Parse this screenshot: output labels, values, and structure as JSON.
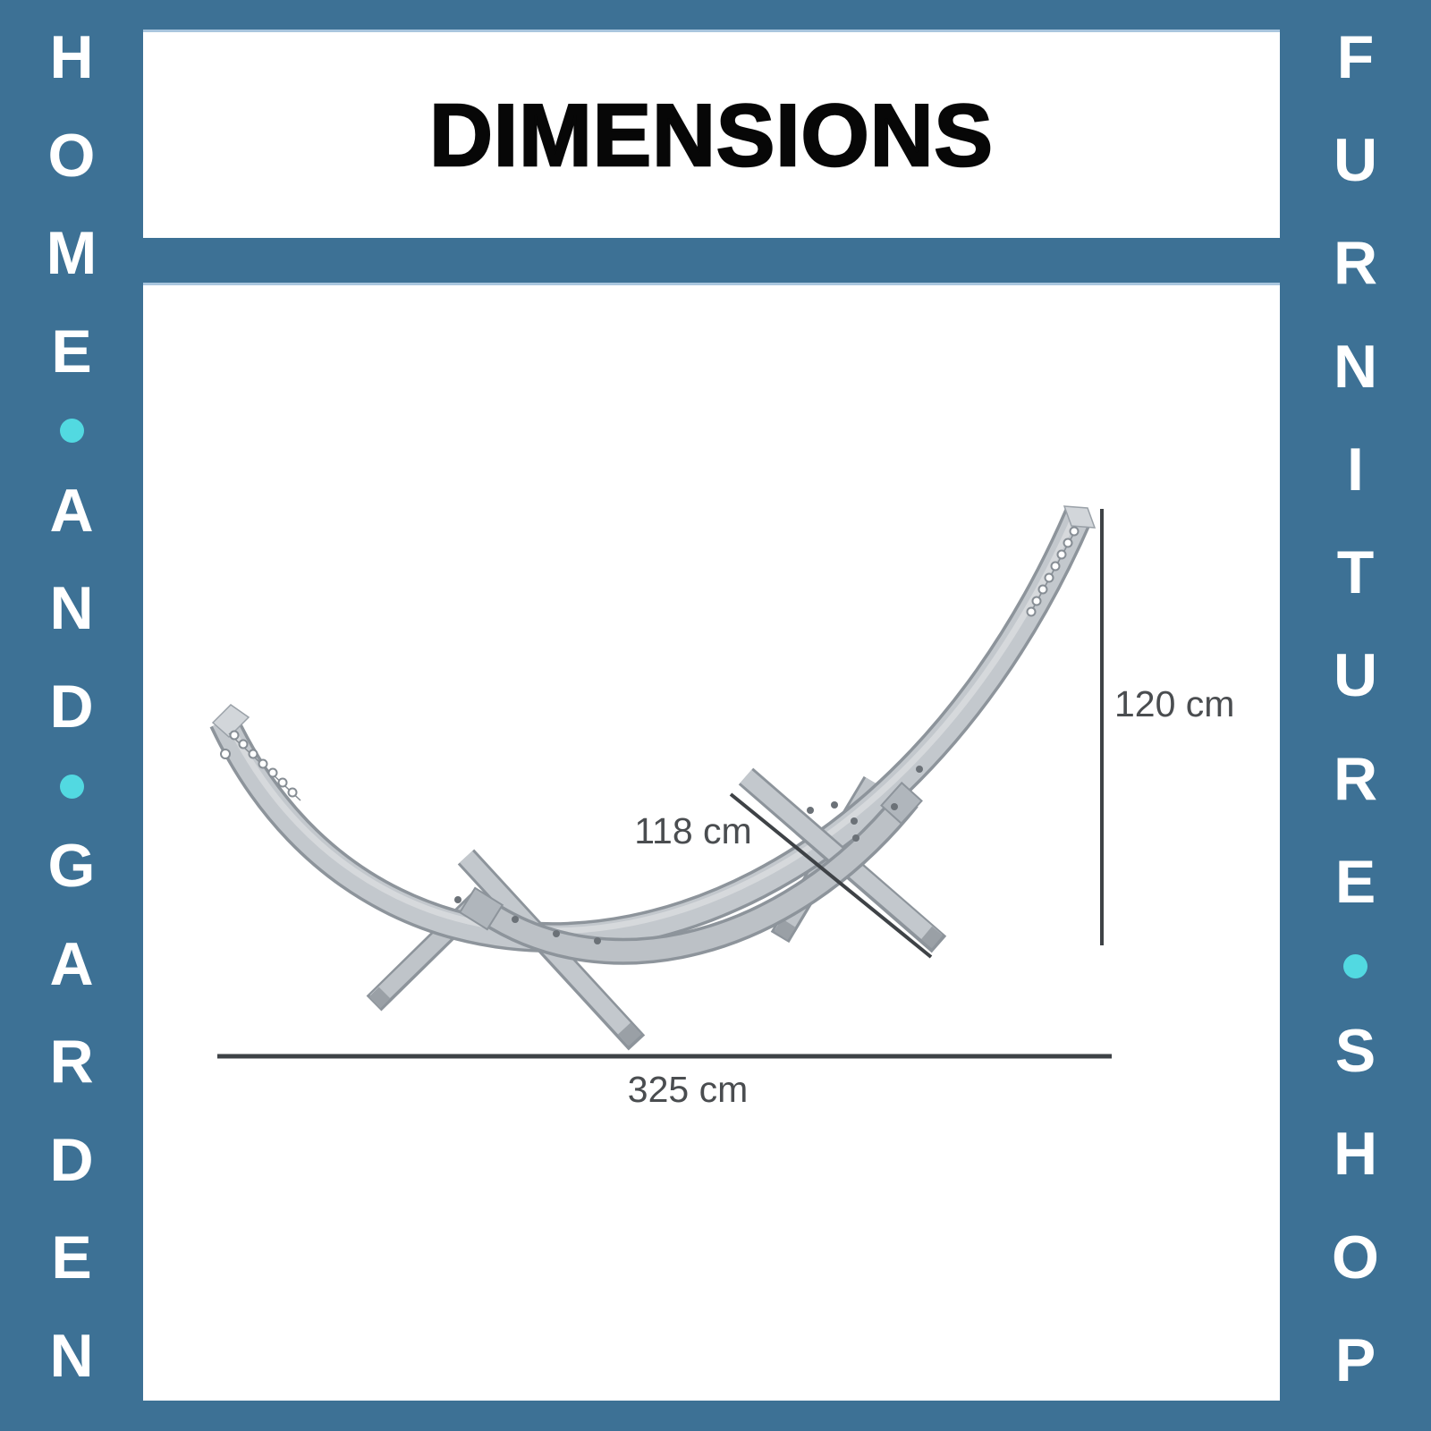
{
  "title": "DIMENSIONS",
  "banners": {
    "left": [
      "H",
      "O",
      "M",
      "E",
      "•",
      "A",
      "N",
      "D",
      "•",
      "G",
      "A",
      "R",
      "D",
      "E",
      "N"
    ],
    "right": [
      "F",
      "U",
      "R",
      "N",
      "I",
      "T",
      "U",
      "R",
      "E",
      "•",
      "S",
      "H",
      "O",
      "P"
    ]
  },
  "dimensions": {
    "height": "120 cm",
    "spread": "118 cm",
    "length": "325 cm"
  },
  "illustration": "curved-wooden-hammock-stand",
  "colors": {
    "frame_blue": "#3D7195",
    "accent_teal": "#52D9E1",
    "panel_edge_light_blue": "#A9C6DE",
    "title_black": "#070707",
    "dimension_text_gray": "#4A4D50",
    "dimension_line_gray": "#3E4246",
    "product_fill_gray": "#C3C8CD",
    "product_edge_gray": "#8D949B"
  }
}
